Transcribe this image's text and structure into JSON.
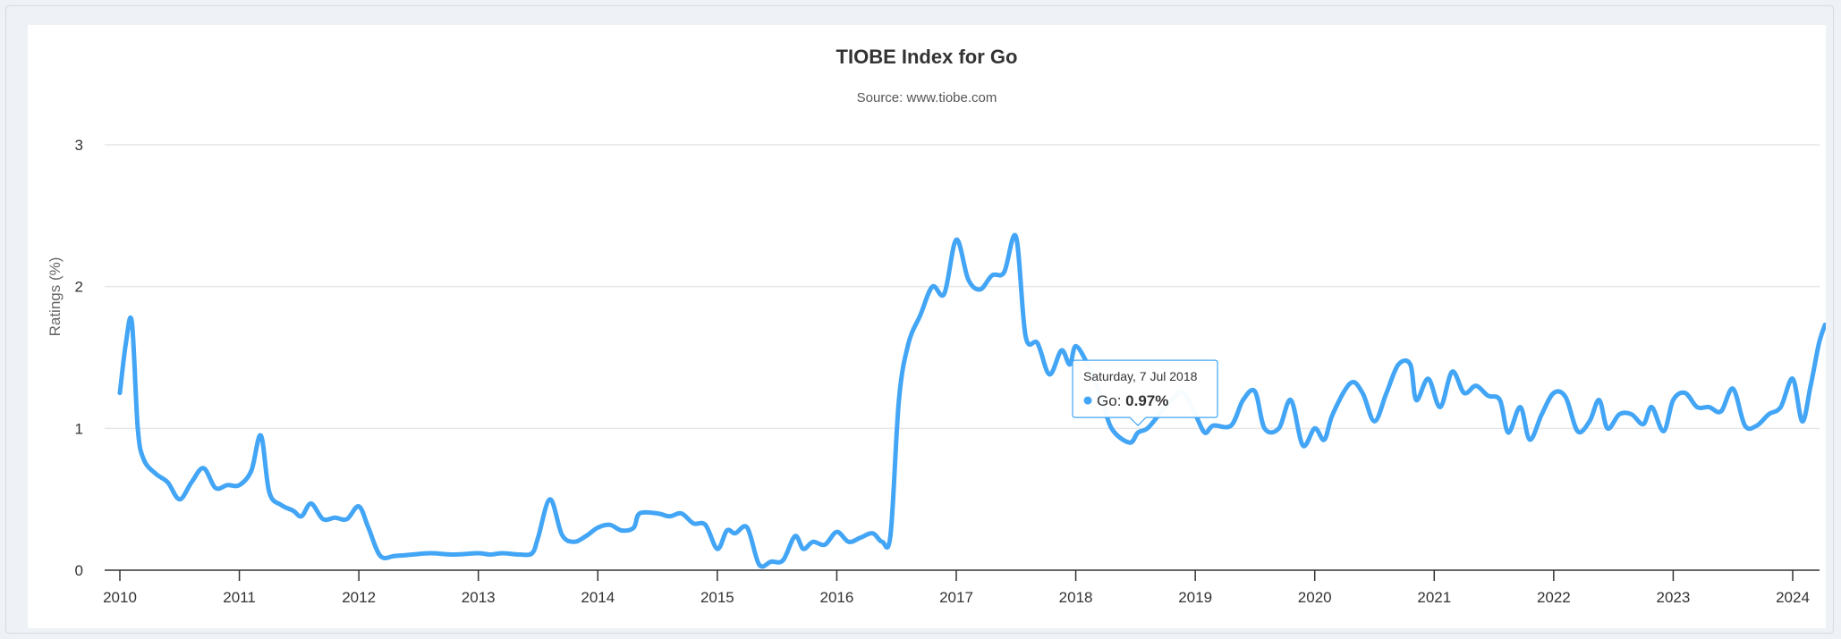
{
  "chart_data": {
    "type": "line",
    "title": "TIOBE Index for Go",
    "subtitle": "Source: www.tiobe.com",
    "xlabel": "",
    "ylabel": "Ratings (%)",
    "x_tick_labels": [
      "2010",
      "2011",
      "2012",
      "2013",
      "2014",
      "2015",
      "2016",
      "2017",
      "2018",
      "2019",
      "2020",
      "2021",
      "2022",
      "2023",
      "2024"
    ],
    "y_tick_labels": [
      "0",
      "1",
      "2",
      "3"
    ],
    "xlim": [
      2010.0,
      2024.3
    ],
    "ylim": [
      0,
      3
    ],
    "grid": true,
    "legend": "none",
    "color": "#42a5f5",
    "series": [
      {
        "values": [
          [
            2010.0,
            1.25
          ],
          [
            2010.05,
            1.6
          ],
          [
            2010.1,
            1.75
          ],
          [
            2010.15,
            1.0
          ],
          [
            2010.2,
            0.78
          ],
          [
            2010.3,
            0.68
          ],
          [
            2010.4,
            0.62
          ],
          [
            2010.5,
            0.5
          ],
          [
            2010.6,
            0.62
          ],
          [
            2010.7,
            0.72
          ],
          [
            2010.8,
            0.58
          ],
          [
            2010.9,
            0.6
          ],
          [
            2011.0,
            0.6
          ],
          [
            2011.1,
            0.7
          ],
          [
            2011.18,
            0.95
          ],
          [
            2011.25,
            0.55
          ],
          [
            2011.35,
            0.46
          ],
          [
            2011.45,
            0.42
          ],
          [
            2011.52,
            0.38
          ],
          [
            2011.6,
            0.47
          ],
          [
            2011.7,
            0.36
          ],
          [
            2011.8,
            0.37
          ],
          [
            2011.9,
            0.36
          ],
          [
            2012.0,
            0.45
          ],
          [
            2012.08,
            0.3
          ],
          [
            2012.18,
            0.1
          ],
          [
            2012.3,
            0.1
          ],
          [
            2012.45,
            0.11
          ],
          [
            2012.6,
            0.12
          ],
          [
            2012.8,
            0.11
          ],
          [
            2013.0,
            0.12
          ],
          [
            2013.1,
            0.11
          ],
          [
            2013.2,
            0.12
          ],
          [
            2013.35,
            0.11
          ],
          [
            2013.45,
            0.12
          ],
          [
            2013.5,
            0.23
          ],
          [
            2013.6,
            0.5
          ],
          [
            2013.7,
            0.25
          ],
          [
            2013.8,
            0.2
          ],
          [
            2013.9,
            0.24
          ],
          [
            2014.0,
            0.3
          ],
          [
            2014.1,
            0.32
          ],
          [
            2014.2,
            0.28
          ],
          [
            2014.3,
            0.3
          ],
          [
            2014.35,
            0.4
          ],
          [
            2014.5,
            0.4
          ],
          [
            2014.6,
            0.38
          ],
          [
            2014.7,
            0.4
          ],
          [
            2014.8,
            0.33
          ],
          [
            2014.9,
            0.32
          ],
          [
            2015.0,
            0.15
          ],
          [
            2015.08,
            0.28
          ],
          [
            2015.15,
            0.26
          ],
          [
            2015.25,
            0.3
          ],
          [
            2015.35,
            0.04
          ],
          [
            2015.45,
            0.06
          ],
          [
            2015.55,
            0.07
          ],
          [
            2015.65,
            0.24
          ],
          [
            2015.72,
            0.15
          ],
          [
            2015.8,
            0.2
          ],
          [
            2015.9,
            0.18
          ],
          [
            2016.0,
            0.27
          ],
          [
            2016.1,
            0.2
          ],
          [
            2016.2,
            0.23
          ],
          [
            2016.3,
            0.26
          ],
          [
            2016.38,
            0.2
          ],
          [
            2016.45,
            0.25
          ],
          [
            2016.52,
            1.2
          ],
          [
            2016.6,
            1.6
          ],
          [
            2016.7,
            1.8
          ],
          [
            2016.8,
            2.0
          ],
          [
            2016.9,
            1.95
          ],
          [
            2017.0,
            2.33
          ],
          [
            2017.1,
            2.05
          ],
          [
            2017.2,
            1.98
          ],
          [
            2017.3,
            2.08
          ],
          [
            2017.4,
            2.1
          ],
          [
            2017.5,
            2.35
          ],
          [
            2017.58,
            1.65
          ],
          [
            2017.68,
            1.6
          ],
          [
            2017.78,
            1.38
          ],
          [
            2017.88,
            1.55
          ],
          [
            2017.95,
            1.45
          ],
          [
            2018.0,
            1.58
          ],
          [
            2018.1,
            1.45
          ],
          [
            2018.2,
            1.25
          ],
          [
            2018.3,
            1.0
          ],
          [
            2018.45,
            0.9
          ],
          [
            2018.52,
            0.97
          ],
          [
            2018.6,
            1.0
          ],
          [
            2018.7,
            1.1
          ],
          [
            2018.8,
            1.2
          ],
          [
            2018.9,
            1.25
          ],
          [
            2019.0,
            1.1
          ],
          [
            2019.08,
            0.97
          ],
          [
            2019.15,
            1.02
          ],
          [
            2019.3,
            1.02
          ],
          [
            2019.4,
            1.2
          ],
          [
            2019.5,
            1.26
          ],
          [
            2019.58,
            1.0
          ],
          [
            2019.7,
            1.0
          ],
          [
            2019.8,
            1.2
          ],
          [
            2019.9,
            0.88
          ],
          [
            2020.0,
            1.0
          ],
          [
            2020.08,
            0.92
          ],
          [
            2020.15,
            1.1
          ],
          [
            2020.3,
            1.32
          ],
          [
            2020.4,
            1.25
          ],
          [
            2020.5,
            1.05
          ],
          [
            2020.6,
            1.25
          ],
          [
            2020.7,
            1.45
          ],
          [
            2020.8,
            1.45
          ],
          [
            2020.85,
            1.2
          ],
          [
            2020.95,
            1.35
          ],
          [
            2021.05,
            1.15
          ],
          [
            2021.15,
            1.4
          ],
          [
            2021.25,
            1.25
          ],
          [
            2021.35,
            1.3
          ],
          [
            2021.45,
            1.23
          ],
          [
            2021.55,
            1.2
          ],
          [
            2021.62,
            0.97
          ],
          [
            2021.72,
            1.15
          ],
          [
            2021.8,
            0.92
          ],
          [
            2021.9,
            1.1
          ],
          [
            2022.0,
            1.25
          ],
          [
            2022.1,
            1.22
          ],
          [
            2022.2,
            0.98
          ],
          [
            2022.3,
            1.05
          ],
          [
            2022.38,
            1.2
          ],
          [
            2022.45,
            1.0
          ],
          [
            2022.55,
            1.1
          ],
          [
            2022.65,
            1.1
          ],
          [
            2022.75,
            1.03
          ],
          [
            2022.82,
            1.15
          ],
          [
            2022.92,
            0.98
          ],
          [
            2023.0,
            1.2
          ],
          [
            2023.1,
            1.25
          ],
          [
            2023.2,
            1.15
          ],
          [
            2023.3,
            1.15
          ],
          [
            2023.4,
            1.12
          ],
          [
            2023.5,
            1.28
          ],
          [
            2023.6,
            1.02
          ],
          [
            2023.7,
            1.02
          ],
          [
            2023.8,
            1.1
          ],
          [
            2023.9,
            1.15
          ],
          [
            2024.0,
            1.35
          ],
          [
            2024.08,
            1.05
          ],
          [
            2024.15,
            1.3
          ],
          [
            2024.22,
            1.6
          ],
          [
            2024.27,
            1.73
          ]
        ]
      }
    ],
    "tooltip": {
      "date": "Saturday, 7 Jul 2018",
      "series_name": "Go",
      "value": "0.97%",
      "x": 2018.52,
      "y": 0.97
    }
  }
}
